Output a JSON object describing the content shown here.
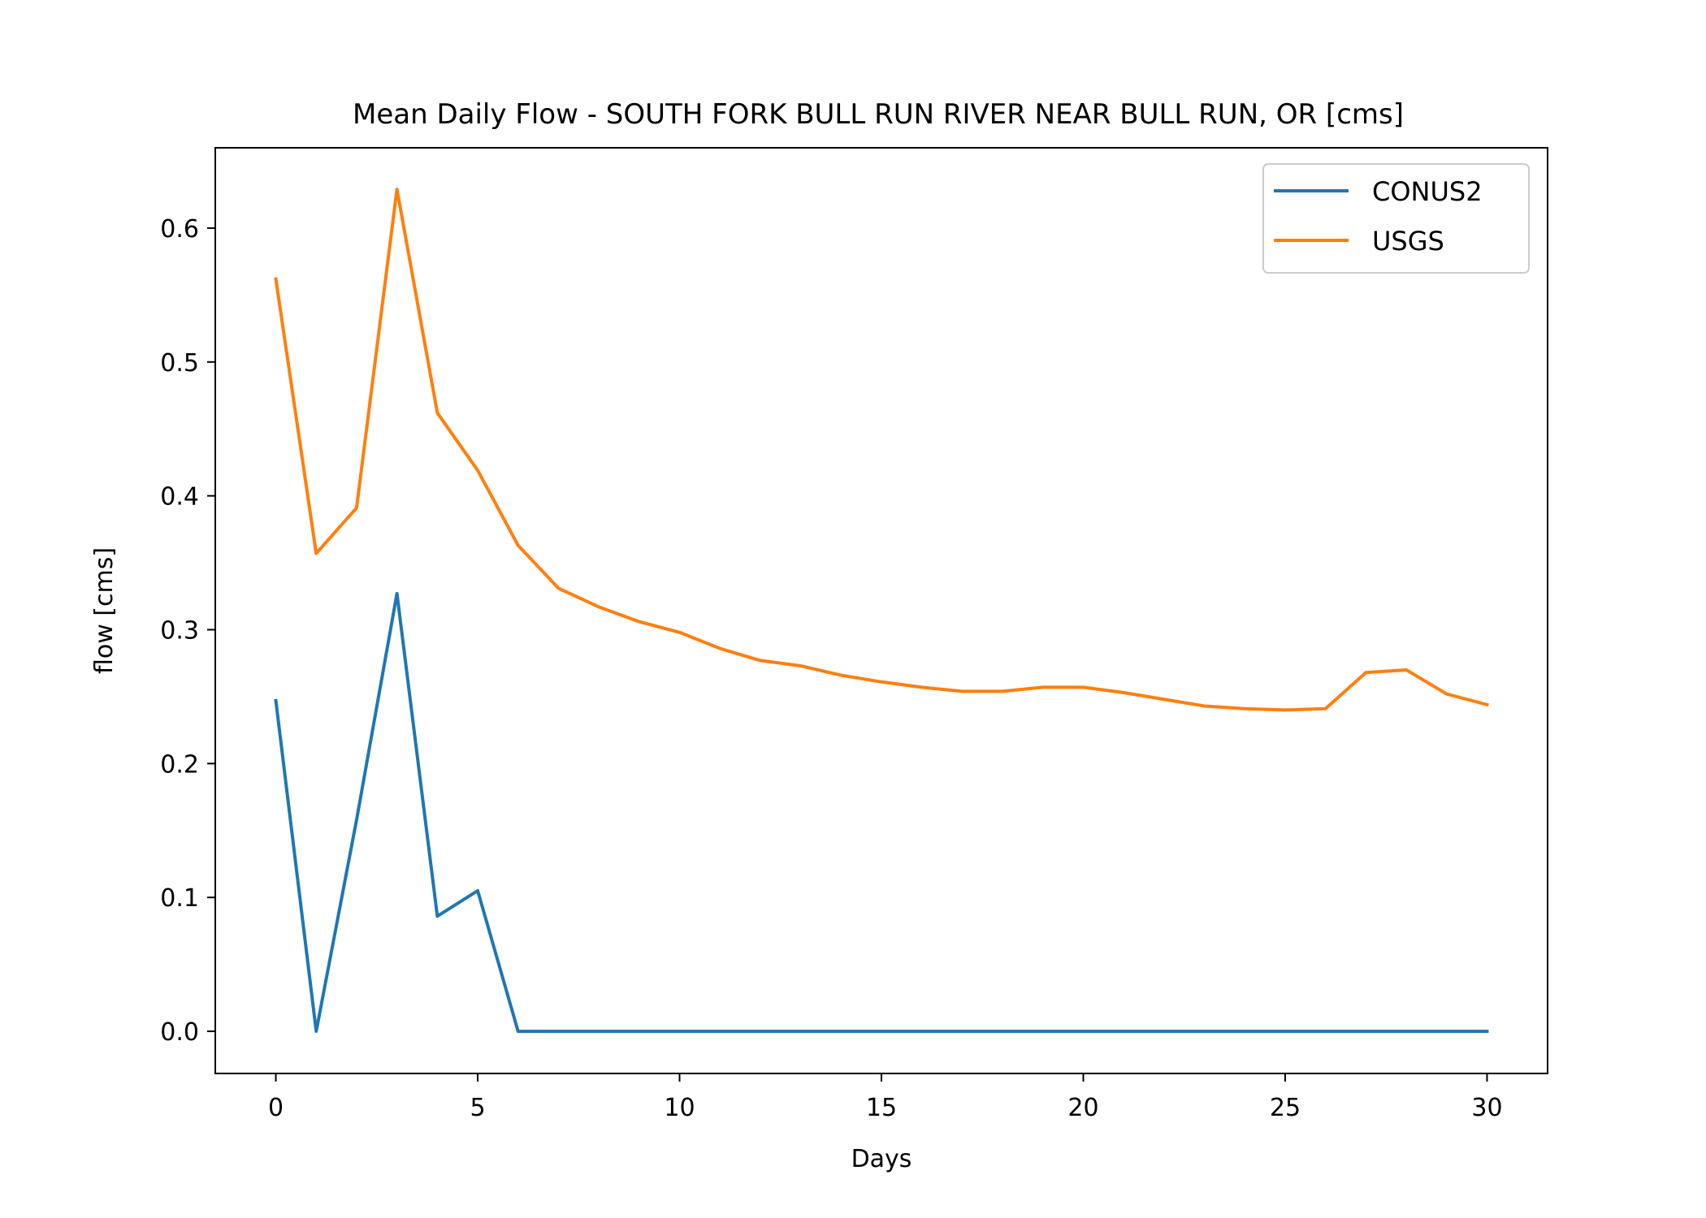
{
  "chart_data": {
    "type": "line",
    "title": "Mean Daily Flow - SOUTH FORK BULL RUN RIVER NEAR BULL RUN, OR [cms]",
    "xlabel": "Days",
    "ylabel": "flow [cms]",
    "xlim": [
      -1.5,
      31.5
    ],
    "ylim": [
      -0.0315,
      0.66
    ],
    "xticks": [
      0,
      5,
      10,
      15,
      20,
      25,
      30
    ],
    "xtick_labels": [
      "0",
      "5",
      "10",
      "15",
      "20",
      "25",
      "30"
    ],
    "yticks": [
      0.0,
      0.1,
      0.2,
      0.3,
      0.4,
      0.5,
      0.6
    ],
    "ytick_labels": [
      "0.0",
      "0.1",
      "0.2",
      "0.3",
      "0.4",
      "0.5",
      "0.6"
    ],
    "grid": false,
    "legend_position": "upper-right",
    "x": [
      0,
      1,
      2,
      3,
      4,
      5,
      6,
      7,
      8,
      9,
      10,
      11,
      12,
      13,
      14,
      15,
      16,
      17,
      18,
      19,
      20,
      21,
      22,
      23,
      24,
      25,
      26,
      27,
      28,
      29,
      30
    ],
    "series": [
      {
        "name": "CONUS2",
        "color": "#1f77b4",
        "values": [
          0.247,
          0.0,
          0.158,
          0.327,
          0.086,
          0.105,
          0.0,
          0.0,
          0.0,
          0.0,
          0.0,
          0.0,
          0.0,
          0.0,
          0.0,
          0.0,
          0.0,
          0.0,
          0.0,
          0.0,
          0.0,
          0.0,
          0.0,
          0.0,
          0.0,
          0.0,
          0.0,
          0.0,
          0.0,
          0.0,
          0.0
        ]
      },
      {
        "name": "USGS",
        "color": "#ff7f0e",
        "values": [
          0.562,
          0.357,
          0.391,
          0.629,
          0.462,
          0.419,
          0.363,
          0.331,
          0.317,
          0.306,
          0.298,
          0.286,
          0.277,
          0.273,
          0.266,
          0.261,
          0.257,
          0.254,
          0.254,
          0.257,
          0.257,
          0.253,
          0.248,
          0.243,
          0.241,
          0.24,
          0.241,
          0.268,
          0.27,
          0.252,
          0.244
        ]
      }
    ]
  }
}
